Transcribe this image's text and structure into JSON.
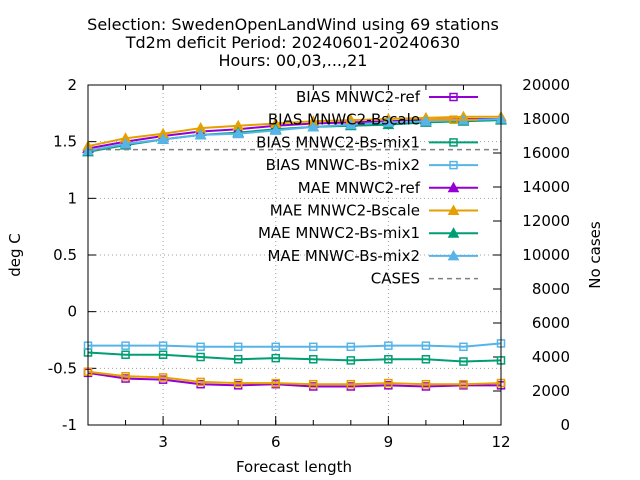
{
  "chart_data": {
    "type": "line",
    "title_lines": [
      "Selection: SwedenOpenLandWind using    69 stations",
      "Td2m deficit   Period: 20240601-20240630",
      "Hours: 00,03,...,21"
    ],
    "xlabel": "Forecast length",
    "ylabel": "deg C",
    "y2label": "No cases",
    "x": [
      1,
      2,
      3,
      4,
      5,
      6,
      7,
      8,
      9,
      10,
      11,
      12
    ],
    "xlim": [
      1,
      12
    ],
    "ylim": [
      -1,
      2
    ],
    "y2lim": [
      0,
      20000
    ],
    "xticks": [
      "3",
      "6",
      "9",
      "12"
    ],
    "yticks": [
      "-1",
      "-0.5",
      "0",
      "0.5",
      "1",
      "1.5",
      "2"
    ],
    "y2ticks": [
      "0",
      "2000",
      "4000",
      "6000",
      "8000",
      "10000",
      "12000",
      "14000",
      "16000",
      "18000",
      "20000"
    ],
    "grid": true,
    "legend_position": "top-right",
    "series": [
      {
        "name": "BIAS MNWC2-ref",
        "color": "#9400d3",
        "marker": "square",
        "axis": "y",
        "values": [
          -0.54,
          -0.59,
          -0.6,
          -0.64,
          -0.65,
          -0.64,
          -0.66,
          -0.66,
          -0.65,
          -0.66,
          -0.65,
          -0.65
        ]
      },
      {
        "name": "BIAS MNWC2-Bscale",
        "color": "#e69f00",
        "marker": "square",
        "axis": "y",
        "values": [
          -0.53,
          -0.57,
          -0.58,
          -0.62,
          -0.63,
          -0.63,
          -0.64,
          -0.64,
          -0.63,
          -0.64,
          -0.64,
          -0.63
        ]
      },
      {
        "name": "BIAS MNWC2-Bs-mix1",
        "color": "#009e73",
        "marker": "square",
        "axis": "y",
        "values": [
          -0.36,
          -0.38,
          -0.38,
          -0.4,
          -0.42,
          -0.41,
          -0.42,
          -0.43,
          -0.42,
          -0.42,
          -0.44,
          -0.43
        ]
      },
      {
        "name": "BIAS MNWC-Bs-mix2",
        "color": "#56b4e9",
        "marker": "square",
        "axis": "y",
        "values": [
          -0.3,
          -0.3,
          -0.3,
          -0.31,
          -0.31,
          -0.31,
          -0.31,
          -0.31,
          -0.3,
          -0.3,
          -0.31,
          -0.28
        ]
      },
      {
        "name": "MAE MNWC2-ref",
        "color": "#9400d3",
        "marker": "triangle",
        "axis": "y",
        "values": [
          1.44,
          1.5,
          1.55,
          1.59,
          1.61,
          1.64,
          1.66,
          1.67,
          1.68,
          1.69,
          1.7,
          1.7
        ]
      },
      {
        "name": "MAE MNWC2-Bscale",
        "color": "#e69f00",
        "marker": "triangle",
        "axis": "y",
        "values": [
          1.46,
          1.53,
          1.57,
          1.62,
          1.64,
          1.66,
          1.68,
          1.69,
          1.7,
          1.71,
          1.72,
          1.72
        ]
      },
      {
        "name": "MAE MNWC2-Bs-mix1",
        "color": "#009e73",
        "marker": "triangle",
        "axis": "y",
        "values": [
          1.41,
          1.47,
          1.52,
          1.56,
          1.58,
          1.61,
          1.63,
          1.64,
          1.65,
          1.67,
          1.68,
          1.69
        ]
      },
      {
        "name": "MAE MNWC-Bs-mix2",
        "color": "#56b4e9",
        "marker": "triangle",
        "axis": "y",
        "values": [
          1.42,
          1.48,
          1.52,
          1.56,
          1.57,
          1.6,
          1.63,
          1.65,
          1.67,
          1.68,
          1.69,
          1.7
        ]
      },
      {
        "name": "CASES",
        "color": "#808080",
        "marker": "none",
        "dash": true,
        "axis": "y2",
        "values": [
          16200,
          16200,
          16200,
          16200,
          16200,
          16200,
          16200,
          16200,
          16200,
          16200,
          16200,
          16200
        ]
      }
    ]
  }
}
